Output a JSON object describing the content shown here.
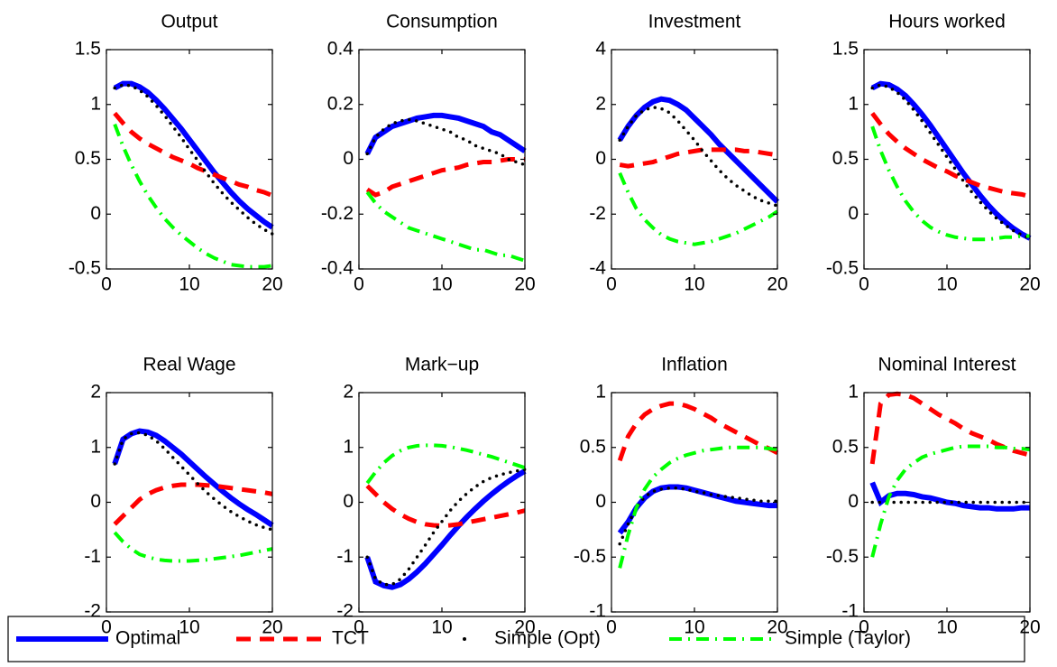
{
  "chart_data": [
    {
      "type": "line",
      "title": "Output",
      "x": [
        1,
        2,
        3,
        4,
        5,
        6,
        7,
        8,
        9,
        10,
        11,
        12,
        13,
        14,
        15,
        16,
        17,
        18,
        19,
        20
      ],
      "xlim": [
        0,
        20
      ],
      "xticks": [
        0,
        10,
        20
      ],
      "ylim": [
        -0.5,
        1.5
      ],
      "yticks": [
        -0.5,
        0,
        0.5,
        1,
        1.5
      ],
      "series": [
        {
          "values": [
            1.15,
            1.19,
            1.19,
            1.16,
            1.11,
            1.04,
            0.96,
            0.87,
            0.78,
            0.68,
            0.58,
            0.48,
            0.38,
            0.29,
            0.2,
            0.12,
            0.05,
            -0.01,
            -0.07,
            -0.12
          ]
        },
        {
          "values": [
            0.92,
            0.83,
            0.75,
            0.69,
            0.64,
            0.6,
            0.56,
            0.52,
            0.49,
            0.46,
            0.42,
            0.39,
            0.36,
            0.33,
            0.3,
            0.27,
            0.25,
            0.22,
            0.2,
            0.17
          ]
        },
        {
          "values": [
            1.15,
            1.18,
            1.17,
            1.13,
            1.07,
            0.99,
            0.9,
            0.8,
            0.7,
            0.59,
            0.49,
            0.38,
            0.28,
            0.19,
            0.11,
            0.04,
            -0.03,
            -0.09,
            -0.14,
            -0.18
          ]
        },
        {
          "values": [
            0.82,
            0.62,
            0.45,
            0.3,
            0.17,
            0.06,
            -0.04,
            -0.12,
            -0.19,
            -0.25,
            -0.31,
            -0.36,
            -0.4,
            -0.43,
            -0.46,
            -0.47,
            -0.48,
            -0.48,
            -0.48,
            -0.47
          ]
        }
      ]
    },
    {
      "type": "line",
      "title": "Consumption",
      "x": [
        1,
        2,
        3,
        4,
        5,
        6,
        7,
        8,
        9,
        10,
        11,
        12,
        13,
        14,
        15,
        16,
        17,
        18,
        19,
        20
      ],
      "xlim": [
        0,
        20
      ],
      "xticks": [
        0,
        10,
        20
      ],
      "ylim": [
        -0.4,
        0.4
      ],
      "yticks": [
        -0.4,
        -0.2,
        0,
        0.2,
        0.4
      ],
      "series": [
        {
          "values": [
            0.02,
            0.08,
            0.1,
            0.12,
            0.13,
            0.14,
            0.15,
            0.155,
            0.16,
            0.16,
            0.155,
            0.15,
            0.14,
            0.13,
            0.12,
            0.1,
            0.09,
            0.07,
            0.05,
            0.03
          ]
        },
        {
          "values": [
            -0.11,
            -0.13,
            -0.12,
            -0.1,
            -0.09,
            -0.08,
            -0.07,
            -0.06,
            -0.05,
            -0.04,
            -0.035,
            -0.03,
            -0.02,
            -0.015,
            -0.01,
            -0.01,
            -0.005,
            0,
            0,
            0
          ]
        },
        {
          "values": [
            0.02,
            0.08,
            0.11,
            0.13,
            0.14,
            0.145,
            0.14,
            0.13,
            0.12,
            0.11,
            0.1,
            0.08,
            0.07,
            0.05,
            0.04,
            0.03,
            0.02,
            0,
            -0.01,
            -0.02
          ]
        },
        {
          "values": [
            -0.12,
            -0.16,
            -0.19,
            -0.21,
            -0.23,
            -0.25,
            -0.26,
            -0.27,
            -0.28,
            -0.29,
            -0.3,
            -0.31,
            -0.32,
            -0.33,
            -0.33,
            -0.34,
            -0.35,
            -0.35,
            -0.36,
            -0.37
          ]
        }
      ]
    },
    {
      "type": "line",
      "title": "Investment",
      "x": [
        1,
        2,
        3,
        4,
        5,
        6,
        7,
        8,
        9,
        10,
        11,
        12,
        13,
        14,
        15,
        16,
        17,
        18,
        19,
        20
      ],
      "xlim": [
        0,
        20
      ],
      "xticks": [
        0,
        10,
        20
      ],
      "ylim": [
        -4,
        4
      ],
      "yticks": [
        -4,
        -2,
        0,
        2,
        4
      ],
      "series": [
        {
          "values": [
            0.7,
            1.2,
            1.6,
            1.9,
            2.1,
            2.2,
            2.15,
            2.0,
            1.8,
            1.5,
            1.2,
            0.9,
            0.55,
            0.25,
            -0.05,
            -0.35,
            -0.65,
            -0.95,
            -1.25,
            -1.55
          ]
        },
        {
          "values": [
            -0.2,
            -0.25,
            -0.2,
            -0.15,
            -0.1,
            0,
            0.1,
            0.2,
            0.25,
            0.3,
            0.35,
            0.35,
            0.35,
            0.35,
            0.35,
            0.3,
            0.3,
            0.25,
            0.2,
            0.15
          ]
        },
        {
          "values": [
            0.7,
            1.2,
            1.6,
            1.8,
            1.9,
            1.85,
            1.7,
            1.4,
            1.05,
            0.7,
            0.3,
            -0.05,
            -0.4,
            -0.7,
            -0.95,
            -1.15,
            -1.35,
            -1.5,
            -1.6,
            -1.7
          ]
        },
        {
          "values": [
            -0.5,
            -1.2,
            -1.8,
            -2.2,
            -2.5,
            -2.75,
            -2.9,
            -3.0,
            -3.05,
            -3.1,
            -3.05,
            -3.0,
            -2.9,
            -2.8,
            -2.7,
            -2.55,
            -2.4,
            -2.25,
            -2.1,
            -1.9
          ]
        }
      ]
    },
    {
      "type": "line",
      "title": "Hours worked",
      "x": [
        1,
        2,
        3,
        4,
        5,
        6,
        7,
        8,
        9,
        10,
        11,
        12,
        13,
        14,
        15,
        16,
        17,
        18,
        19,
        20
      ],
      "xlim": [
        0,
        20
      ],
      "xticks": [
        0,
        10,
        20
      ],
      "ylim": [
        -0.5,
        1.5
      ],
      "yticks": [
        -0.5,
        0,
        0.5,
        1,
        1.5
      ],
      "series": [
        {
          "values": [
            1.15,
            1.19,
            1.18,
            1.14,
            1.08,
            1.0,
            0.91,
            0.81,
            0.7,
            0.59,
            0.48,
            0.37,
            0.27,
            0.17,
            0.08,
            0,
            -0.07,
            -0.13,
            -0.18,
            -0.22
          ]
        },
        {
          "values": [
            0.92,
            0.82,
            0.73,
            0.66,
            0.6,
            0.55,
            0.5,
            0.46,
            0.42,
            0.39,
            0.35,
            0.32,
            0.29,
            0.26,
            0.24,
            0.22,
            0.2,
            0.19,
            0.18,
            0.16
          ]
        },
        {
          "values": [
            1.15,
            1.18,
            1.16,
            1.11,
            1.04,
            0.95,
            0.85,
            0.74,
            0.63,
            0.52,
            0.41,
            0.3,
            0.2,
            0.11,
            0.03,
            -0.04,
            -0.1,
            -0.15,
            -0.19,
            -0.22
          ]
        },
        {
          "values": [
            0.8,
            0.58,
            0.4,
            0.25,
            0.12,
            0.02,
            -0.06,
            -0.12,
            -0.16,
            -0.19,
            -0.21,
            -0.22,
            -0.23,
            -0.23,
            -0.23,
            -0.22,
            -0.21,
            -0.21,
            -0.2,
            -0.2
          ]
        }
      ]
    },
    {
      "type": "line",
      "title": "Real Wage",
      "x": [
        1,
        2,
        3,
        4,
        5,
        6,
        7,
        8,
        9,
        10,
        11,
        12,
        13,
        14,
        15,
        16,
        17,
        18,
        19,
        20
      ],
      "xlim": [
        0,
        20
      ],
      "xticks": [
        0,
        10,
        20
      ],
      "ylim": [
        -2,
        2
      ],
      "yticks": [
        -2,
        -1,
        0,
        1,
        2
      ],
      "series": [
        {
          "values": [
            0.7,
            1.15,
            1.25,
            1.3,
            1.28,
            1.22,
            1.12,
            1.0,
            0.88,
            0.74,
            0.6,
            0.46,
            0.33,
            0.2,
            0.08,
            -0.03,
            -0.13,
            -0.22,
            -0.32,
            -0.42
          ]
        },
        {
          "values": [
            -0.4,
            -0.25,
            -0.1,
            0.05,
            0.15,
            0.22,
            0.27,
            0.3,
            0.32,
            0.32,
            0.32,
            0.31,
            0.3,
            0.28,
            0.26,
            0.24,
            0.22,
            0.2,
            0.18,
            0.15
          ]
        },
        {
          "values": [
            0.7,
            1.15,
            1.25,
            1.27,
            1.22,
            1.12,
            0.98,
            0.82,
            0.66,
            0.5,
            0.34,
            0.19,
            0.06,
            -0.06,
            -0.17,
            -0.26,
            -0.34,
            -0.41,
            -0.46,
            -0.5
          ]
        },
        {
          "values": [
            -0.55,
            -0.72,
            -0.85,
            -0.95,
            -1.0,
            -1.04,
            -1.06,
            -1.07,
            -1.07,
            -1.07,
            -1.06,
            -1.05,
            -1.03,
            -1.01,
            -0.99,
            -0.97,
            -0.94,
            -0.91,
            -0.88,
            -0.85
          ]
        }
      ]
    },
    {
      "type": "line",
      "title": "Mark−up",
      "x": [
        1,
        2,
        3,
        4,
        5,
        6,
        7,
        8,
        9,
        10,
        11,
        12,
        13,
        14,
        15,
        16,
        17,
        18,
        19,
        20
      ],
      "xlim": [
        0,
        20
      ],
      "xticks": [
        0,
        10,
        20
      ],
      "ylim": [
        -2,
        2
      ],
      "yticks": [
        -2,
        -1,
        0,
        1,
        2
      ],
      "series": [
        {
          "values": [
            -1.0,
            -1.45,
            -1.52,
            -1.55,
            -1.5,
            -1.4,
            -1.27,
            -1.12,
            -0.95,
            -0.78,
            -0.6,
            -0.43,
            -0.27,
            -0.12,
            0.02,
            0.15,
            0.27,
            0.38,
            0.48,
            0.57
          ]
        },
        {
          "values": [
            0.3,
            0.15,
            0,
            -0.12,
            -0.22,
            -0.3,
            -0.36,
            -0.4,
            -0.42,
            -0.43,
            -0.42,
            -0.4,
            -0.37,
            -0.34,
            -0.31,
            -0.28,
            -0.25,
            -0.22,
            -0.19,
            -0.15
          ]
        },
        {
          "values": [
            -1.0,
            -1.4,
            -1.5,
            -1.5,
            -1.4,
            -1.22,
            -1.0,
            -0.78,
            -0.55,
            -0.35,
            -0.15,
            0.02,
            0.16,
            0.28,
            0.38,
            0.45,
            0.5,
            0.54,
            0.57,
            0.6
          ]
        },
        {
          "values": [
            0.35,
            0.55,
            0.72,
            0.85,
            0.94,
            1.0,
            1.03,
            1.04,
            1.04,
            1.03,
            1.01,
            0.98,
            0.95,
            0.91,
            0.87,
            0.83,
            0.78,
            0.73,
            0.68,
            0.63
          ]
        }
      ]
    },
    {
      "type": "line",
      "title": "Inflation",
      "x": [
        1,
        2,
        3,
        4,
        5,
        6,
        7,
        8,
        9,
        10,
        11,
        12,
        13,
        14,
        15,
        16,
        17,
        18,
        19,
        20
      ],
      "xlim": [
        0,
        20
      ],
      "xticks": [
        0,
        10,
        20
      ],
      "ylim": [
        -1,
        1
      ],
      "yticks": [
        -1,
        -0.5,
        0,
        0.5,
        1
      ],
      "series": [
        {
          "values": [
            -0.28,
            -0.18,
            -0.05,
            0.04,
            0.1,
            0.13,
            0.14,
            0.14,
            0.13,
            0.11,
            0.09,
            0.07,
            0.05,
            0.03,
            0.01,
            0,
            -0.01,
            -0.02,
            -0.03,
            -0.03
          ]
        },
        {
          "values": [
            0.38,
            0.6,
            0.72,
            0.8,
            0.85,
            0.88,
            0.9,
            0.9,
            0.88,
            0.85,
            0.81,
            0.77,
            0.72,
            0.68,
            0.64,
            0.6,
            0.56,
            0.52,
            0.49,
            0.45
          ]
        },
        {
          "values": [
            -0.38,
            -0.2,
            -0.05,
            0.05,
            0.1,
            0.12,
            0.13,
            0.13,
            0.12,
            0.1,
            0.09,
            0.07,
            0.06,
            0.05,
            0.04,
            0.03,
            0.02,
            0.01,
            0.01,
            0.01
          ]
        },
        {
          "values": [
            -0.6,
            -0.3,
            -0.05,
            0.12,
            0.23,
            0.3,
            0.36,
            0.4,
            0.43,
            0.45,
            0.47,
            0.48,
            0.49,
            0.5,
            0.5,
            0.5,
            0.5,
            0.5,
            0.49,
            0.48
          ]
        }
      ]
    },
    {
      "type": "line",
      "title": "Nominal Interest",
      "x": [
        1,
        2,
        3,
        4,
        5,
        6,
        7,
        8,
        9,
        10,
        11,
        12,
        13,
        14,
        15,
        16,
        17,
        18,
        19,
        20
      ],
      "xlim": [
        0,
        20
      ],
      "xticks": [
        0,
        10,
        20
      ],
      "ylim": [
        -1,
        1
      ],
      "yticks": [
        -1,
        -0.5,
        0,
        0.5,
        1
      ],
      "series": [
        {
          "values": [
            0.18,
            0,
            0.06,
            0.08,
            0.08,
            0.07,
            0.05,
            0.04,
            0.02,
            0,
            -0.01,
            -0.03,
            -0.04,
            -0.05,
            -0.05,
            -0.06,
            -0.06,
            -0.06,
            -0.05,
            -0.05
          ]
        },
        {
          "values": [
            0.35,
            0.9,
            0.98,
            0.99,
            0.98,
            0.95,
            0.9,
            0.85,
            0.8,
            0.76,
            0.72,
            0.67,
            0.63,
            0.6,
            0.57,
            0.53,
            0.5,
            0.47,
            0.45,
            0.43
          ]
        },
        {
          "values": [
            0,
            0,
            0,
            0,
            0,
            0,
            0,
            0,
            0,
            0,
            0,
            0,
            0,
            0,
            0,
            0,
            0,
            0,
            0,
            0
          ]
        },
        {
          "values": [
            -0.5,
            -0.2,
            0.05,
            0.2,
            0.3,
            0.36,
            0.41,
            0.44,
            0.46,
            0.48,
            0.5,
            0.51,
            0.51,
            0.51,
            0.51,
            0.5,
            0.5,
            0.49,
            0.49,
            0.48
          ]
        }
      ]
    }
  ],
  "legend": [
    {
      "name": "Optimal",
      "color": "#0000ff",
      "style": "solid"
    },
    {
      "name": "TCT",
      "color": "#ff0000",
      "style": "dashed"
    },
    {
      "name": "Simple (Opt)",
      "color": "#000000",
      "style": "dotted"
    },
    {
      "name": "Simple (Taylor)",
      "color": "#00ff00",
      "style": "dashdot"
    }
  ]
}
